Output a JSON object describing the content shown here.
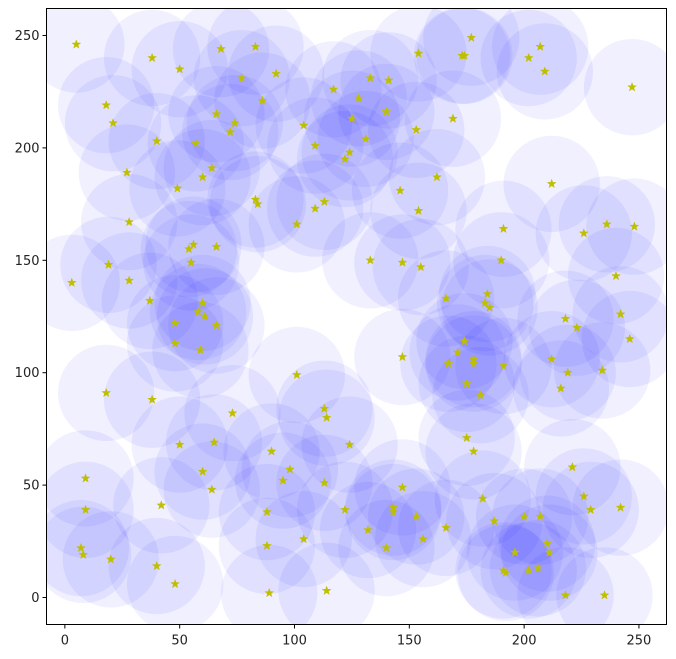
{
  "chart_data": {
    "type": "scatter",
    "title": "",
    "xlabel": "",
    "ylabel": "",
    "xlim": [
      -8,
      262
    ],
    "ylim": [
      -12,
      262
    ],
    "grid": false,
    "xticks": [
      0,
      50,
      100,
      150,
      200,
      250
    ],
    "yticks": [
      0,
      50,
      100,
      150,
      200,
      250
    ],
    "xtick_labels": [
      "0",
      "50",
      "100",
      "150",
      "200",
      "250"
    ],
    "ytick_labels": [
      "0",
      "50",
      "100",
      "150",
      "200",
      "250"
    ],
    "marker": "star",
    "marker_color": "#bfbf00",
    "circle_color": "#0000ff",
    "circle_alpha": 0.06,
    "circle_radius": 21,
    "points": [
      [
        5,
        246
      ],
      [
        38,
        240
      ],
      [
        50,
        235
      ],
      [
        68,
        244
      ],
      [
        83,
        245
      ],
      [
        77,
        231
      ],
      [
        92,
        233
      ],
      [
        18,
        219
      ],
      [
        21,
        211
      ],
      [
        86,
        221
      ],
      [
        66,
        215
      ],
      [
        74,
        211
      ],
      [
        72,
        207
      ],
      [
        104,
        210
      ],
      [
        40,
        203
      ],
      [
        57,
        202
      ],
      [
        27,
        189
      ],
      [
        64,
        191
      ],
      [
        60,
        187
      ],
      [
        49,
        182
      ],
      [
        83,
        177
      ],
      [
        84,
        175
      ],
      [
        101,
        166
      ],
      [
        109,
        173
      ],
      [
        113,
        176
      ],
      [
        117,
        226
      ],
      [
        128,
        222
      ],
      [
        133,
        231
      ],
      [
        141,
        230
      ],
      [
        154,
        242
      ],
      [
        173,
        241
      ],
      [
        174,
        241
      ],
      [
        177,
        249
      ],
      [
        202,
        240
      ],
      [
        207,
        245
      ],
      [
        209,
        234
      ],
      [
        247,
        227
      ],
      [
        125,
        213
      ],
      [
        140,
        216
      ],
      [
        153,
        208
      ],
      [
        169,
        213
      ],
      [
        109,
        201
      ],
      [
        124,
        198
      ],
      [
        122,
        195
      ],
      [
        131,
        204
      ],
      [
        146,
        181
      ],
      [
        162,
        187
      ],
      [
        154,
        172
      ],
      [
        28,
        167
      ],
      [
        54,
        155
      ],
      [
        56,
        157
      ],
      [
        66,
        156
      ],
      [
        55,
        149
      ],
      [
        19,
        148
      ],
      [
        28,
        141
      ],
      [
        3,
        140
      ],
      [
        37,
        132
      ],
      [
        60,
        131
      ],
      [
        61,
        125
      ],
      [
        58,
        127
      ],
      [
        48,
        122
      ],
      [
        66,
        121
      ],
      [
        48,
        113
      ],
      [
        59,
        110
      ],
      [
        133,
        150
      ],
      [
        147,
        149
      ],
      [
        155,
        147
      ],
      [
        191,
        164
      ],
      [
        212,
        184
      ],
      [
        226,
        162
      ],
      [
        236,
        166
      ],
      [
        248,
        165
      ],
      [
        190,
        150
      ],
      [
        166,
        133
      ],
      [
        184,
        135
      ],
      [
        183,
        131
      ],
      [
        185,
        129
      ],
      [
        240,
        143
      ],
      [
        242,
        126
      ],
      [
        218,
        124
      ],
      [
        223,
        120
      ],
      [
        246,
        115
      ],
      [
        174,
        114
      ],
      [
        171,
        109
      ],
      [
        167,
        104
      ],
      [
        178,
        106
      ],
      [
        178,
        104
      ],
      [
        191,
        103
      ],
      [
        212,
        106
      ],
      [
        147,
        107
      ],
      [
        234,
        101
      ],
      [
        219,
        100
      ],
      [
        175,
        95
      ],
      [
        216,
        93
      ],
      [
        181,
        90
      ],
      [
        101,
        99
      ],
      [
        18,
        91
      ],
      [
        38,
        88
      ],
      [
        73,
        82
      ],
      [
        113,
        84
      ],
      [
        114,
        80
      ],
      [
        124,
        68
      ],
      [
        50,
        68
      ],
      [
        65,
        69
      ],
      [
        175,
        71
      ],
      [
        178,
        65
      ],
      [
        200,
        36
      ],
      [
        9,
        53
      ],
      [
        60,
        56
      ],
      [
        90,
        65
      ],
      [
        98,
        57
      ],
      [
        113,
        51
      ],
      [
        95,
        52
      ],
      [
        64,
        48
      ],
      [
        221,
        58
      ],
      [
        226,
        45
      ],
      [
        229,
        39
      ],
      [
        242,
        40
      ],
      [
        147,
        49
      ],
      [
        182,
        44
      ],
      [
        187,
        34
      ],
      [
        122,
        39
      ],
      [
        143,
        40
      ],
      [
        143,
        38
      ],
      [
        9,
        39
      ],
      [
        42,
        41
      ],
      [
        88,
        38
      ],
      [
        104,
        26
      ],
      [
        132,
        30
      ],
      [
        140,
        22
      ],
      [
        153,
        36
      ],
      [
        156,
        26
      ],
      [
        166,
        31
      ],
      [
        207,
        36
      ],
      [
        7,
        22
      ],
      [
        8,
        19
      ],
      [
        20,
        17
      ],
      [
        88,
        23
      ],
      [
        40,
        14
      ],
      [
        48,
        6
      ],
      [
        196,
        20
      ],
      [
        202,
        12
      ],
      [
        206,
        13
      ],
      [
        210,
        24
      ],
      [
        211,
        20
      ],
      [
        191,
        12
      ],
      [
        192,
        11
      ],
      [
        89,
        2
      ],
      [
        114,
        3
      ],
      [
        218,
        1
      ],
      [
        235,
        1
      ]
    ]
  }
}
